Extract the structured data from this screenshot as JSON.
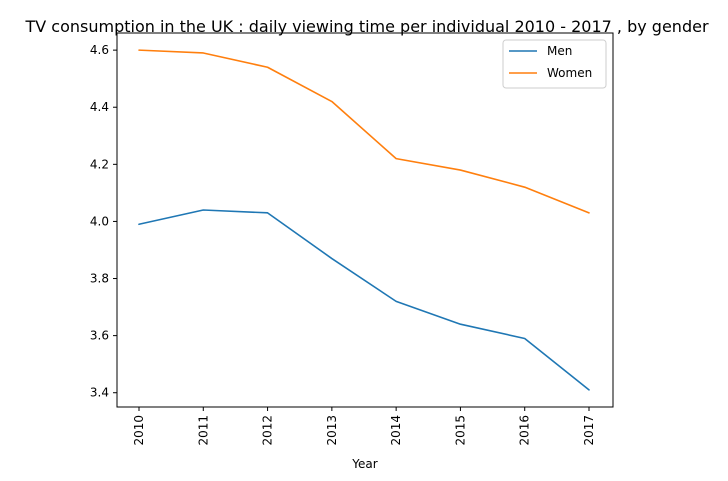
{
  "chart_data": {
    "type": "line",
    "title": "TV consumption in the UK : daily viewing time per individual 2010 - 2017 , by gender",
    "xlabel": "Year",
    "ylabel": "",
    "x": [
      "2010",
      "2011",
      "2012",
      "2013",
      "2014",
      "2015",
      "2016",
      "2017"
    ],
    "ylim": [
      3.35,
      4.66
    ],
    "yticks": [
      "3.4",
      "3.6",
      "3.8",
      "4.0",
      "4.2",
      "4.4",
      "4.6"
    ],
    "legend_position": "top-right",
    "grid": false,
    "series": [
      {
        "name": "Men",
        "color": "#1f77b4",
        "values": [
          3.99,
          4.04,
          4.03,
          3.87,
          3.72,
          3.64,
          3.59,
          3.41
        ]
      },
      {
        "name": "Women",
        "color": "#ff7f0e",
        "values": [
          4.6,
          4.59,
          4.54,
          4.42,
          4.22,
          4.18,
          4.12,
          4.03
        ]
      }
    ]
  }
}
